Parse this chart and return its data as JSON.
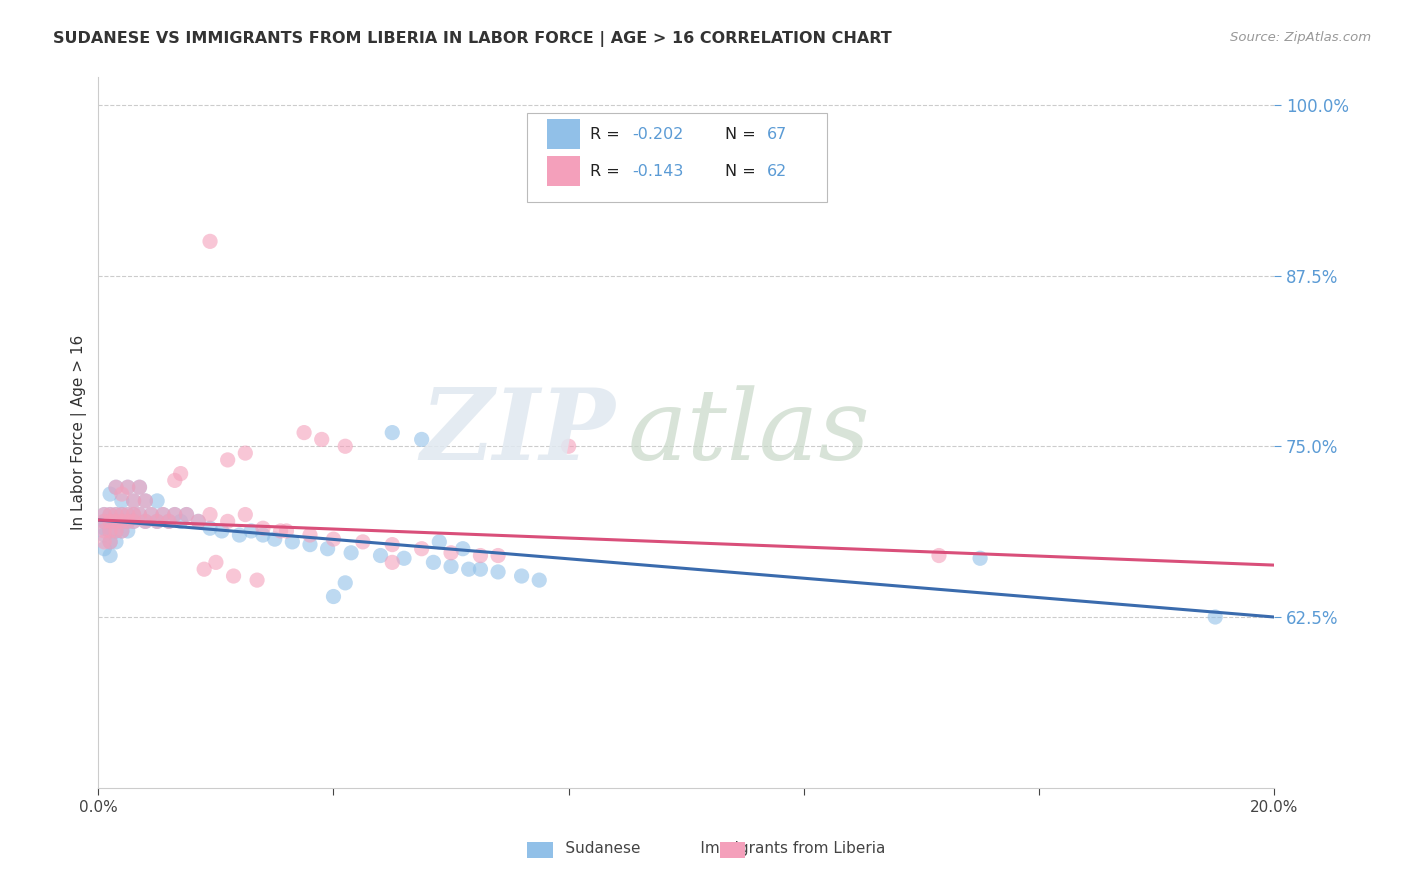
{
  "title": "SUDANESE VS IMMIGRANTS FROM LIBERIA IN LABOR FORCE | AGE > 16 CORRELATION CHART",
  "source": "Source: ZipAtlas.com",
  "ylabel": "In Labor Force | Age > 16",
  "xlim": [
    0.0,
    0.2
  ],
  "ylim": [
    0.5,
    1.02
  ],
  "yticks": [
    0.625,
    0.75,
    0.875,
    1.0
  ],
  "ytick_labels": [
    "62.5%",
    "75.0%",
    "87.5%",
    "100.0%"
  ],
  "xticks": [
    0.0,
    0.04,
    0.08,
    0.12,
    0.16,
    0.2
  ],
  "color_blue": "#91C0E8",
  "color_pink": "#F4A0BB",
  "line_color_blue": "#3A6BAD",
  "line_color_pink": "#D94F7A",
  "legend_r1": "-0.202",
  "legend_n1": "67",
  "legend_r2": "-0.143",
  "legend_n2": "62",
  "sudanese_x": [
    0.001,
    0.001,
    0.001,
    0.001,
    0.001,
    0.002,
    0.002,
    0.002,
    0.002,
    0.002,
    0.002,
    0.003,
    0.003,
    0.003,
    0.003,
    0.003,
    0.004,
    0.004,
    0.004,
    0.004,
    0.005,
    0.005,
    0.005,
    0.005,
    0.006,
    0.006,
    0.006,
    0.007,
    0.007,
    0.008,
    0.008,
    0.009,
    0.01,
    0.01,
    0.011,
    0.012,
    0.013,
    0.014,
    0.015,
    0.017,
    0.019,
    0.021,
    0.024,
    0.026,
    0.028,
    0.03,
    0.033,
    0.036,
    0.039,
    0.043,
    0.048,
    0.052,
    0.057,
    0.06,
    0.063,
    0.068,
    0.072,
    0.075,
    0.055,
    0.05,
    0.058,
    0.062,
    0.065,
    0.042,
    0.04,
    0.15,
    0.19
  ],
  "sudanese_y": [
    0.7,
    0.695,
    0.69,
    0.685,
    0.675,
    0.7,
    0.695,
    0.688,
    0.68,
    0.67,
    0.715,
    0.7,
    0.695,
    0.688,
    0.68,
    0.72,
    0.7,
    0.695,
    0.688,
    0.71,
    0.7,
    0.695,
    0.688,
    0.72,
    0.7,
    0.695,
    0.71,
    0.7,
    0.72,
    0.695,
    0.71,
    0.7,
    0.695,
    0.71,
    0.7,
    0.695,
    0.7,
    0.695,
    0.7,
    0.695,
    0.69,
    0.688,
    0.685,
    0.688,
    0.685,
    0.682,
    0.68,
    0.678,
    0.675,
    0.672,
    0.67,
    0.668,
    0.665,
    0.662,
    0.66,
    0.658,
    0.655,
    0.652,
    0.755,
    0.76,
    0.68,
    0.675,
    0.66,
    0.65,
    0.64,
    0.668,
    0.625
  ],
  "liberia_x": [
    0.001,
    0.001,
    0.001,
    0.001,
    0.002,
    0.002,
    0.002,
    0.002,
    0.003,
    0.003,
    0.003,
    0.003,
    0.004,
    0.004,
    0.004,
    0.004,
    0.005,
    0.005,
    0.005,
    0.006,
    0.006,
    0.006,
    0.007,
    0.007,
    0.008,
    0.008,
    0.009,
    0.01,
    0.011,
    0.012,
    0.013,
    0.015,
    0.017,
    0.019,
    0.022,
    0.025,
    0.028,
    0.032,
    0.036,
    0.04,
    0.045,
    0.05,
    0.055,
    0.06,
    0.065,
    0.035,
    0.038,
    0.042,
    0.025,
    0.022,
    0.02,
    0.018,
    0.023,
    0.027,
    0.019,
    0.031,
    0.068,
    0.05,
    0.014,
    0.013,
    0.143,
    0.08
  ],
  "liberia_y": [
    0.7,
    0.695,
    0.688,
    0.68,
    0.7,
    0.695,
    0.688,
    0.68,
    0.7,
    0.695,
    0.688,
    0.72,
    0.7,
    0.695,
    0.688,
    0.715,
    0.7,
    0.695,
    0.72,
    0.7,
    0.695,
    0.71,
    0.7,
    0.72,
    0.695,
    0.71,
    0.7,
    0.695,
    0.7,
    0.695,
    0.7,
    0.7,
    0.695,
    0.7,
    0.695,
    0.7,
    0.69,
    0.688,
    0.685,
    0.682,
    0.68,
    0.678,
    0.675,
    0.672,
    0.67,
    0.76,
    0.755,
    0.75,
    0.745,
    0.74,
    0.665,
    0.66,
    0.655,
    0.652,
    0.9,
    0.688,
    0.67,
    0.665,
    0.73,
    0.725,
    0.67,
    0.75
  ]
}
